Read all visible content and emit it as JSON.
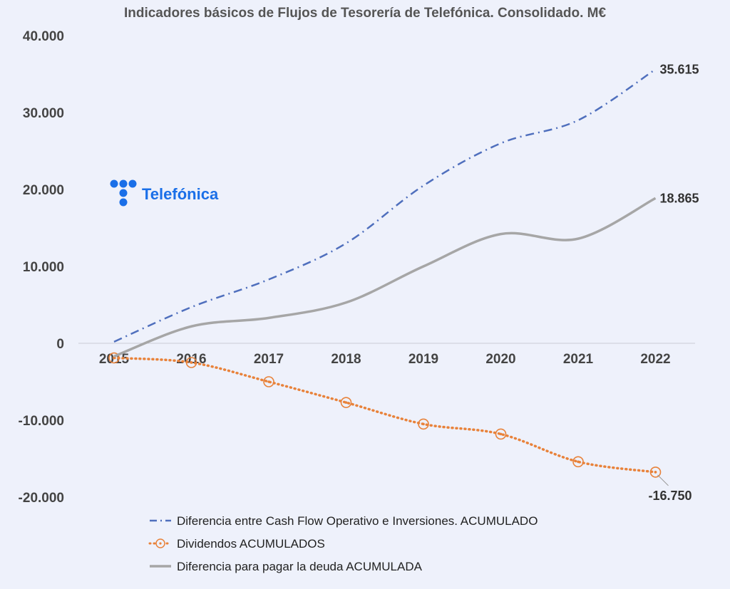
{
  "chart_data": {
    "type": "line",
    "title": "Indicadores básicos de Flujos de Tesorería de Telefónica. Consolidado. M€",
    "categories": [
      "2015",
      "2016",
      "2017",
      "2018",
      "2019",
      "2020",
      "2021",
      "2022"
    ],
    "ylim": [
      -20000,
      40000
    ],
    "yticks": [
      40000,
      30000,
      20000,
      10000,
      0,
      -10000,
      -20000
    ],
    "ytick_labels": [
      "40.000",
      "30.000",
      "20.000",
      "10.000",
      "0",
      "-10.000",
      "-20.000"
    ],
    "grid": false,
    "legend_position": "bottom",
    "series": [
      {
        "name": "Diferencia entre Cash Flow Operativo e Inversiones. ACUMULADO",
        "values": [
          200,
          4700,
          8300,
          13000,
          20500,
          26000,
          29000,
          35615
        ],
        "color": "#4f6fbd",
        "style": "dash-dot",
        "end_label": "35.615"
      },
      {
        "name": "Dividendos ACUMULADOS",
        "values": [
          -1900,
          -2500,
          -5000,
          -7700,
          -10500,
          -11800,
          -15400,
          -16750
        ],
        "color": "#e8823a",
        "style": "dotted-circles",
        "end_label": "-16.750"
      },
      {
        "name": "Diferencia para pagar la deuda ACUMULADA",
        "values": [
          -1700,
          2200,
          3300,
          5300,
          10000,
          14200,
          13600,
          18865
        ],
        "color": "#a6a6a6",
        "style": "solid",
        "end_label": "18.865"
      }
    ]
  },
  "logo": {
    "text": "Telefónica",
    "color": "#1a6fe8"
  }
}
